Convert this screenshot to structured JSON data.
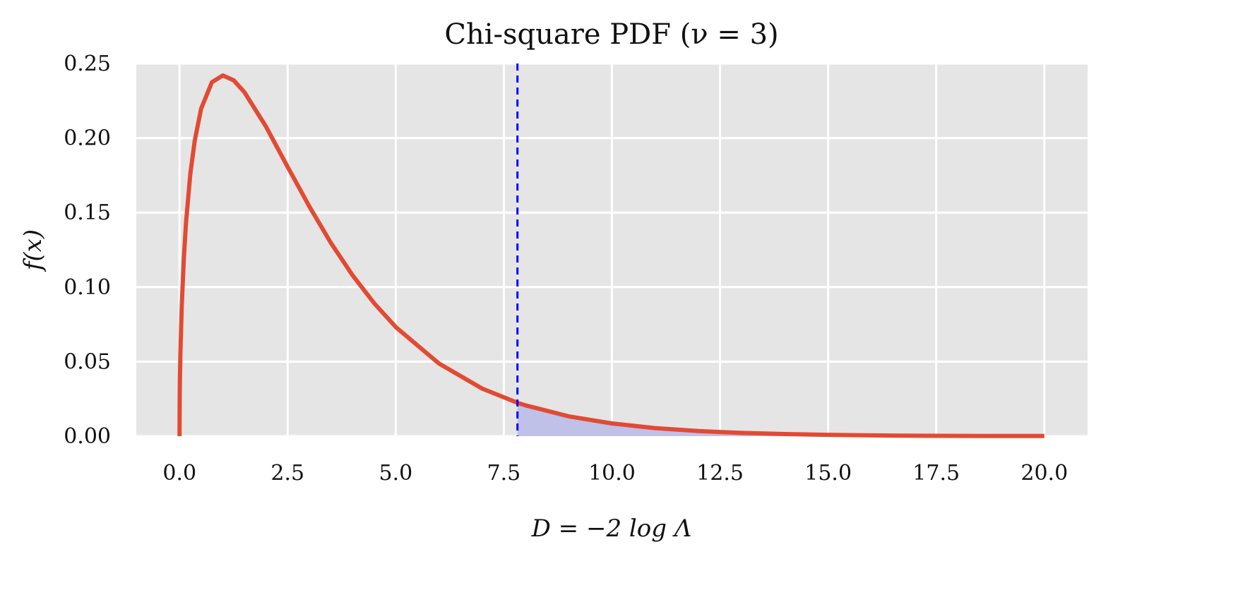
{
  "chart_data": {
    "type": "area",
    "title": "Chi-square PDF (ν = 3)",
    "xlabel": "D = −2 log Λ",
    "ylabel": "f(x)",
    "xlim": [
      -1,
      21
    ],
    "ylim": [
      0,
      0.25
    ],
    "grid": true,
    "x_ticks": [
      0,
      2.5,
      5,
      7.5,
      10,
      12.5,
      15,
      17.5,
      20
    ],
    "x_tick_labels": [
      "0.0",
      "2.5",
      "5.0",
      "7.5",
      "10.0",
      "12.5",
      "15.0",
      "17.5",
      "20.0"
    ],
    "y_ticks": [
      0,
      0.05,
      0.1,
      0.15,
      0.2,
      0.25
    ],
    "y_tick_labels": [
      "0.00",
      "0.05",
      "0.10",
      "0.15",
      "0.20",
      "0.25"
    ],
    "degrees_of_freedom": 3,
    "critical_value": 7.815,
    "series": [
      {
        "name": "pdf",
        "color": "#e24a33",
        "x": [
          0,
          0.005,
          0.01,
          0.02,
          0.05,
          0.1,
          0.15,
          0.25,
          0.35,
          0.5,
          0.75,
          1,
          1.25,
          1.5,
          2,
          2.5,
          3,
          3.5,
          4,
          4.5,
          5,
          6,
          7,
          7.815,
          8,
          9,
          10,
          11,
          12,
          13,
          14,
          15,
          16,
          17,
          18,
          19,
          20
        ],
        "y": [
          0,
          0.0282,
          0.0397,
          0.0559,
          0.087,
          0.12,
          0.1433,
          0.176,
          0.1981,
          0.2197,
          0.2375,
          0.242,
          0.2388,
          0.2308,
          0.2076,
          0.1807,
          0.1542,
          0.1297,
          0.108,
          0.0892,
          0.0732,
          0.0487,
          0.0319,
          0.0224,
          0.0207,
          0.0133,
          0.0085,
          0.0054,
          0.0034,
          0.0022,
          0.0014,
          0.0009,
          0.0005,
          0.0003,
          0.0002,
          0.0001,
          0.0001
        ]
      }
    ],
    "shaded_region": {
      "from": 7.815,
      "to": 20,
      "color": "#bfc1e8"
    },
    "vline": {
      "x": 7.815,
      "color": "#0000ff",
      "style": "dashed"
    },
    "background": "#e5e5e5"
  }
}
